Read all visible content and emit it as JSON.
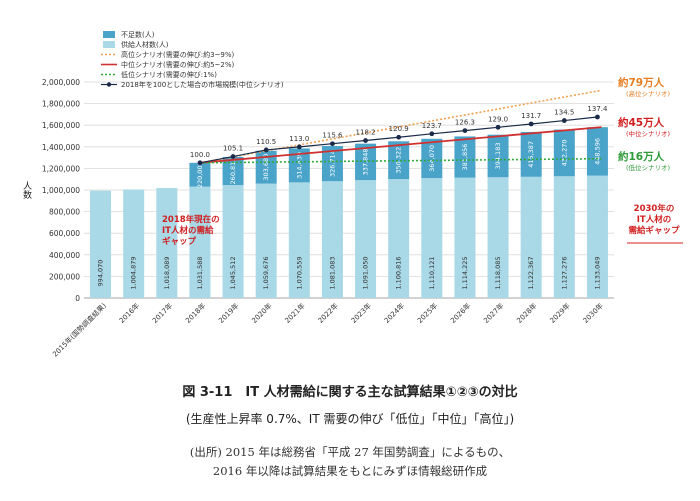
{
  "chart_data": {
    "type": "bar",
    "ylabel": "人数",
    "ylim": [
      0,
      2000000
    ],
    "yticks": [
      0,
      200000,
      400000,
      600000,
      800000,
      1000000,
      1200000,
      1400000,
      1600000,
      1800000,
      2000000
    ],
    "ytick_labels": [
      "0",
      "200,000",
      "400,000",
      "600,000",
      "800,000",
      "1,000,000",
      "1,200,000",
      "1,400,000",
      "1,600,000",
      "1,800,000",
      "2,000,000"
    ],
    "categories": [
      "2015年(国勢調査結果)",
      "2016年",
      "2017年",
      "2018年",
      "2019年",
      "2020年",
      "2021年",
      "2022年",
      "2023年",
      "2024年",
      "2025年",
      "2026年",
      "2027年",
      "2028年",
      "2029年",
      "2030年"
    ],
    "supply": [
      994070,
      1004879,
      1018089,
      1031588,
      1045512,
      1059676,
      1070559,
      1081083,
      1091050,
      1100816,
      1110121,
      1114225,
      1118085,
      1122367,
      1127276,
      1133049
    ],
    "supply_labels": [
      "994,070",
      "1,004,879",
      "1,018,089",
      "1,031,588",
      "1,045,512",
      "1,059,676",
      "1,070,559",
      "1,081,083",
      "1,091,050",
      "1,100,816",
      "1,110,121",
      "1,114,225",
      "1,118,085",
      "1,122,367",
      "1,127,276",
      "1,133,049"
    ],
    "shortage": [
      null,
      null,
      null,
      220000,
      260815,
      303680,
      314439,
      326714,
      337848,
      350322,
      364070,
      381856,
      394183,
      415387,
      432270,
      448596
    ],
    "shortage_labels": [
      "",
      "",
      "",
      "220,000",
      "260,815",
      "303,680",
      "314,439",
      "326,714",
      "337,848",
      "350,322",
      "364,070",
      "381,856",
      "394,183",
      "415,387",
      "432,270",
      "448,596"
    ],
    "index_values": [
      null,
      null,
      null,
      100.0,
      105.1,
      110.5,
      113.0,
      115.6,
      118.2,
      120.9,
      123.7,
      126.3,
      129.0,
      131.7,
      134.5,
      137.4
    ],
    "index_labels": [
      "",
      "",
      "",
      "100.0",
      "105.1",
      "110.5",
      "113.0",
      "115.6",
      "118.2",
      "120.9",
      "123.7",
      "126.3",
      "129.0",
      "131.7",
      "134.5",
      "137.4"
    ],
    "scenario_high": [
      null,
      null,
      null,
      1251588,
      null,
      null,
      null,
      null,
      null,
      null,
      null,
      null,
      null,
      null,
      null,
      1923000
    ],
    "scenario_mid": [
      null,
      null,
      null,
      1251588,
      null,
      null,
      null,
      null,
      null,
      null,
      null,
      null,
      null,
      null,
      null,
      1582000
    ],
    "scenario_low": [
      null,
      null,
      null,
      1251588,
      null,
      null,
      null,
      null,
      null,
      null,
      null,
      null,
      null,
      null,
      null,
      1290000
    ],
    "legend": [
      {
        "name": "不足数(人)",
        "type": "box",
        "color": "#4aa3c9"
      },
      {
        "name": "供給人材数(人)",
        "type": "box",
        "color": "#a9d8e6"
      },
      {
        "name": "高位シナリオ(需要の伸び:約3~9%)",
        "type": "dotted",
        "color": "#f0a050"
      },
      {
        "name": "中位シナリオ(需要の伸び:約5~2%)",
        "type": "solid",
        "color": "#d03030"
      },
      {
        "name": "低位シナリオ(需要の伸び:1%)",
        "type": "dotted",
        "color": "#2faa3a"
      },
      {
        "name": "2018年を100とした場合の市場規模(中位シナリオ)",
        "type": "marker",
        "color": "#1a2a48"
      }
    ],
    "right_labels": [
      {
        "text": "約79万人",
        "sub": "(高位シナリオ)",
        "color": "#e67e22"
      },
      {
        "text": "約45万人",
        "sub": "(中位シナリオ)",
        "color": "#d02020"
      },
      {
        "text": "約16万人",
        "sub": "(低位シナリオ)",
        "color": "#2f9a3a"
      }
    ],
    "annotation_2018": [
      "2018年現在の",
      "IT人材の需給",
      "ギャップ"
    ],
    "annotation_2030": [
      "2030年の",
      "IT人材の",
      "需給ギャップ"
    ],
    "colors": {
      "supply": "#a9d8e6",
      "shortage": "#4aa3c9",
      "high": "#f0a050",
      "mid": "#d03030",
      "low": "#2faa3a",
      "index": "#1a2a48",
      "annotation": "#d02020"
    }
  },
  "caption": {
    "title": "図 3-11　IT 人材需給に関する主な試算結果①②③の対比",
    "subtitle": "(生産性上昇率 0.7%、IT 需要の伸び「低位」「中位」「高位」)",
    "source_line1": "(出所) 2015 年は総務省「平成 27 年国勢調査」によるもの、",
    "source_line2": "2016 年以降は試算結果をもとにみずほ情報総研作成"
  }
}
